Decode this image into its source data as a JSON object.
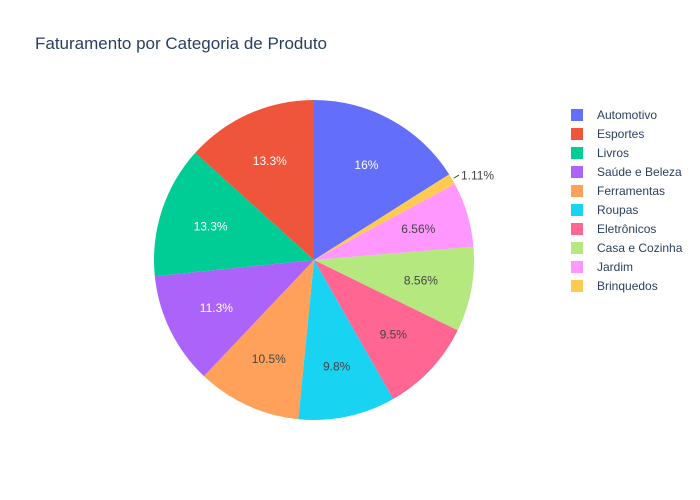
{
  "chart_data": {
    "type": "pie",
    "title": "Faturamento por Categoria de Produto",
    "slices": [
      {
        "label": "Automotivo",
        "percent": 16,
        "display": "16%",
        "color": "#636efa"
      },
      {
        "label": "Brinquedos",
        "percent": 1.11,
        "display": "1.11%",
        "color": "#fecb52"
      },
      {
        "label": "Jardim",
        "percent": 6.56,
        "display": "6.56%",
        "color": "#ff97ff"
      },
      {
        "label": "Casa e Cozinha",
        "percent": 8.56,
        "display": "8.56%",
        "color": "#b6e880"
      },
      {
        "label": "Eletrônicos",
        "percent": 9.5,
        "display": "9.5%",
        "color": "#ff6692"
      },
      {
        "label": "Roupas",
        "percent": 9.8,
        "display": "9.8%",
        "color": "#19d3f3"
      },
      {
        "label": "Ferramentas",
        "percent": 10.5,
        "display": "10.5%",
        "color": "#ffa15a"
      },
      {
        "label": "Saúde e Beleza",
        "percent": 11.3,
        "display": "11.3%",
        "color": "#ab63fa"
      },
      {
        "label": "Livros",
        "percent": 13.3,
        "display": "13.3%",
        "color": "#00cc96"
      },
      {
        "label": "Esportes",
        "percent": 13.3,
        "display": "13.3%",
        "color": "#ef553b"
      }
    ],
    "legend": [
      "Automotivo",
      "Esportes",
      "Livros",
      "Saúde e Beleza",
      "Ferramentas",
      "Roupas",
      "Eletrônicos",
      "Casa e Cozinha",
      "Jardim",
      "Brinquedos"
    ],
    "legend_position": "right",
    "direction": "clockwise",
    "start": "top"
  }
}
